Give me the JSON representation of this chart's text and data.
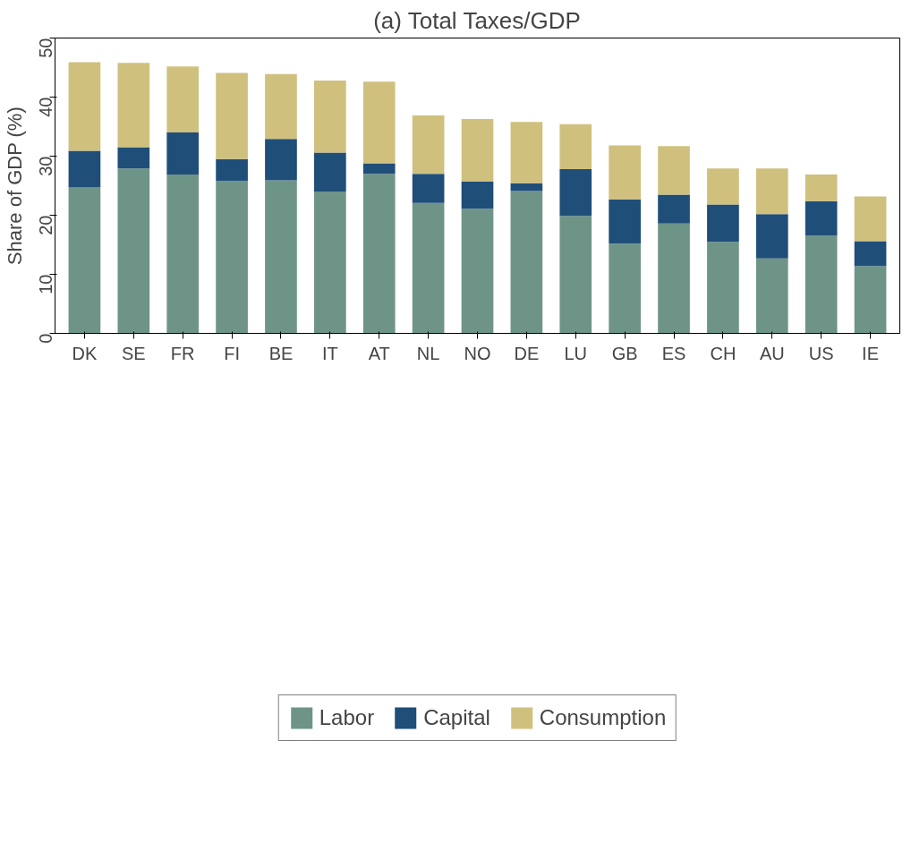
{
  "chart_data": {
    "type": "bar",
    "title": "(a) Total Taxes/GDP",
    "ylabel": "Share of GDP (%)",
    "categories": [
      "DK",
      "SE",
      "FR",
      "FI",
      "BE",
      "IT",
      "AT",
      "NL",
      "NO",
      "DE",
      "LU",
      "GB",
      "ES",
      "CH",
      "AU",
      "US",
      "IE"
    ],
    "stacked": true,
    "series": [
      {
        "name": "Labor",
        "color": "#6e9488",
        "values": [
          24.7,
          27.9,
          26.9,
          25.8,
          25.9,
          24.0,
          27.0,
          22.1,
          21.1,
          24.1,
          19.9,
          15.2,
          18.6,
          15.5,
          12.7,
          16.6,
          11.4
        ]
      },
      {
        "name": "Capital",
        "color": "#1f4e79",
        "values": [
          6.2,
          3.6,
          7.1,
          3.7,
          7.0,
          6.6,
          1.8,
          4.9,
          4.6,
          1.3,
          7.9,
          7.5,
          4.9,
          6.3,
          7.5,
          5.8,
          4.2
        ]
      },
      {
        "name": "Consumption",
        "color": "#cfc07e",
        "values": [
          15.0,
          14.3,
          11.2,
          14.6,
          11.0,
          12.2,
          13.8,
          9.9,
          10.6,
          10.4,
          7.6,
          9.1,
          8.2,
          6.1,
          7.7,
          4.5,
          7.6
        ]
      }
    ],
    "ylim": [
      0,
      50
    ],
    "yticks": [
      0,
      10,
      20,
      30,
      40,
      50
    ],
    "grid": false,
    "legend": "bottom"
  }
}
